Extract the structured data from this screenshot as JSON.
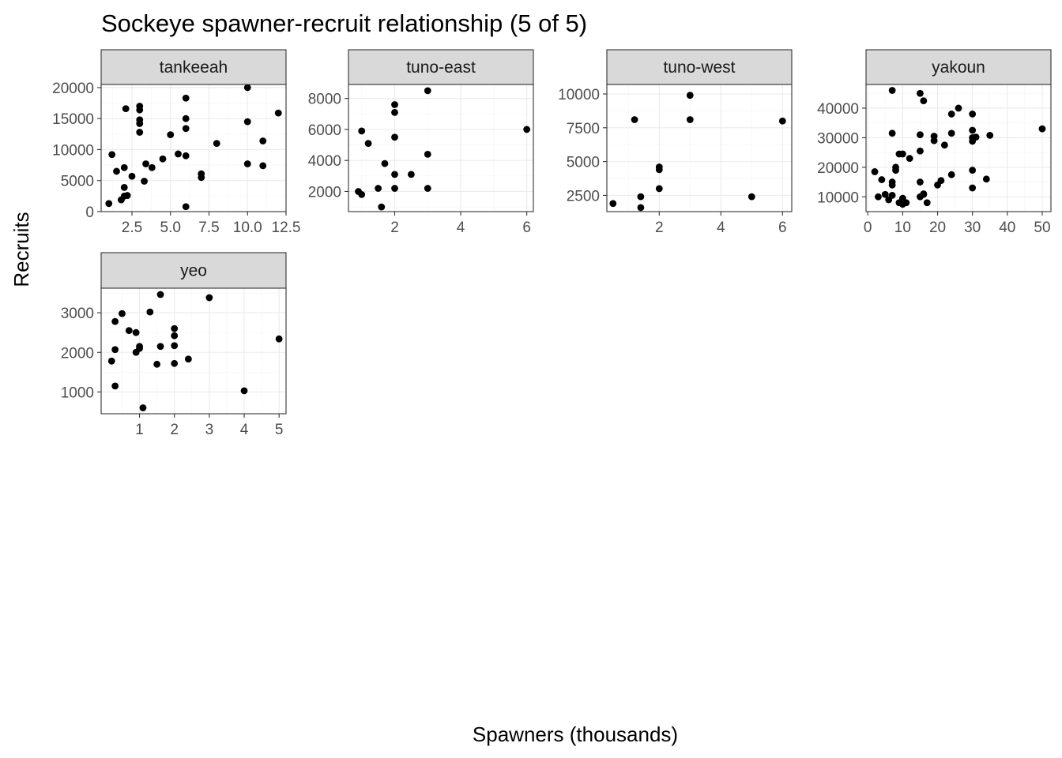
{
  "chart_data": {
    "type": "scatter",
    "title": "Sockeye spawner-recruit relationship (5 of 5)",
    "xlabel": "Spawners (thousands)",
    "ylabel": "Recruits",
    "grid": true,
    "facets": [
      {
        "name": "tankeeah",
        "xlim": [
          0.5,
          12.5
        ],
        "ylim": [
          0,
          20500
        ],
        "xticks": [
          2.5,
          5.0,
          7.5,
          10.0,
          12.5
        ],
        "xtick_labels": [
          "2.5",
          "5.0",
          "7.5",
          "10.0",
          "12.5"
        ],
        "yticks": [
          0,
          5000,
          10000,
          15000,
          20000
        ],
        "ytick_labels": [
          "0",
          "5000",
          "10000",
          "15000",
          "20000"
        ],
        "points": [
          [
            1.0,
            1300
          ],
          [
            1.2,
            9200
          ],
          [
            1.5,
            6500
          ],
          [
            1.8,
            1900
          ],
          [
            2.0,
            2500
          ],
          [
            2.0,
            7100
          ],
          [
            2.0,
            3900
          ],
          [
            2.1,
            16600
          ],
          [
            2.2,
            2600
          ],
          [
            2.5,
            5700
          ],
          [
            3.0,
            17000
          ],
          [
            3.0,
            16400
          ],
          [
            3.0,
            14800
          ],
          [
            3.0,
            14200
          ],
          [
            3.0,
            12800
          ],
          [
            3.3,
            4900
          ],
          [
            3.4,
            7700
          ],
          [
            3.8,
            7100
          ],
          [
            4.5,
            8500
          ],
          [
            5.0,
            12400
          ],
          [
            5.5,
            9300
          ],
          [
            6.0,
            18300
          ],
          [
            6.0,
            15000
          ],
          [
            6.0,
            13400
          ],
          [
            6.0,
            9000
          ],
          [
            6.0,
            800
          ],
          [
            7.0,
            5500
          ],
          [
            7.0,
            6100
          ],
          [
            8.0,
            11000
          ],
          [
            10.0,
            20000
          ],
          [
            10.0,
            14500
          ],
          [
            10.0,
            7700
          ],
          [
            11.0,
            11400
          ],
          [
            11.0,
            7400
          ],
          [
            12.0,
            15900
          ]
        ]
      },
      {
        "name": "tuno-east",
        "xlim": [
          0.6,
          6.2
        ],
        "ylim": [
          700,
          8900
        ],
        "xticks": [
          2,
          4,
          6
        ],
        "xtick_labels": [
          "2",
          "4",
          "6"
        ],
        "yticks": [
          2000,
          4000,
          6000,
          8000
        ],
        "ytick_labels": [
          "2000",
          "4000",
          "6000",
          "8000"
        ],
        "points": [
          [
            0.9,
            2000
          ],
          [
            1.0,
            5900
          ],
          [
            1.0,
            1800
          ],
          [
            1.2,
            5100
          ],
          [
            1.5,
            2200
          ],
          [
            1.6,
            1000
          ],
          [
            1.7,
            3800
          ],
          [
            2.0,
            7600
          ],
          [
            2.0,
            7100
          ],
          [
            2.0,
            5500
          ],
          [
            2.0,
            3100
          ],
          [
            2.0,
            2200
          ],
          [
            2.5,
            3100
          ],
          [
            3.0,
            8500
          ],
          [
            3.0,
            4400
          ],
          [
            3.0,
            2200
          ],
          [
            6.0,
            6000
          ]
        ]
      },
      {
        "name": "tuno-west",
        "xlim": [
          0.3,
          6.3
        ],
        "ylim": [
          1300,
          10700
        ],
        "xticks": [
          2,
          4,
          6
        ],
        "xtick_labels": [
          "2",
          "4",
          "6"
        ],
        "yticks": [
          2500,
          5000,
          7500,
          10000
        ],
        "ytick_labels": [
          "2500",
          "5000",
          "7500",
          "10000"
        ],
        "points": [
          [
            0.5,
            1900
          ],
          [
            1.2,
            8100
          ],
          [
            1.4,
            2400
          ],
          [
            1.4,
            1600
          ],
          [
            2.0,
            4600
          ],
          [
            2.0,
            4400
          ],
          [
            2.0,
            3000
          ],
          [
            3.0,
            9900
          ],
          [
            3.0,
            8100
          ],
          [
            5.0,
            2400
          ],
          [
            6.0,
            8000
          ]
        ]
      },
      {
        "name": "yakoun",
        "xlim": [
          -0.5,
          52.5
        ],
        "ylim": [
          5000,
          48000
        ],
        "xticks": [
          0,
          10,
          20,
          30,
          40,
          50
        ],
        "xtick_labels": [
          "0",
          "10",
          "20",
          "30",
          "40",
          "50"
        ],
        "yticks": [
          10000,
          20000,
          30000,
          40000
        ],
        "ytick_labels": [
          "10000",
          "20000",
          "30000",
          "40000"
        ],
        "points": [
          [
            2,
            18500
          ],
          [
            3,
            10000
          ],
          [
            4,
            15800
          ],
          [
            5,
            10800
          ],
          [
            6,
            9000
          ],
          [
            7,
            46000
          ],
          [
            7,
            31500
          ],
          [
            7,
            15000
          ],
          [
            7,
            14000
          ],
          [
            7,
            10500
          ],
          [
            8,
            19000
          ],
          [
            8,
            20000
          ],
          [
            9,
            8000
          ],
          [
            9,
            24500
          ],
          [
            10,
            24500
          ],
          [
            10,
            7500
          ],
          [
            10,
            9500
          ],
          [
            11,
            8000
          ],
          [
            12,
            23000
          ],
          [
            15,
            45000
          ],
          [
            15,
            31000
          ],
          [
            15,
            25500
          ],
          [
            15,
            15000
          ],
          [
            15,
            10000
          ],
          [
            16,
            42500
          ],
          [
            16,
            11000
          ],
          [
            16,
            10800
          ],
          [
            17,
            8000
          ],
          [
            19,
            29000
          ],
          [
            19,
            30500
          ],
          [
            20,
            14000
          ],
          [
            21,
            15500
          ],
          [
            22,
            27500
          ],
          [
            24,
            38000
          ],
          [
            24,
            31500
          ],
          [
            24,
            17500
          ],
          [
            26,
            40000
          ],
          [
            30,
            38000
          ],
          [
            30,
            32500
          ],
          [
            30,
            30000
          ],
          [
            30,
            28800
          ],
          [
            30,
            19000
          ],
          [
            30,
            13000
          ],
          [
            31,
            30200
          ],
          [
            34,
            16000
          ],
          [
            35,
            30800
          ],
          [
            50,
            33000
          ]
        ]
      },
      {
        "name": "yeo",
        "xlim": [
          -0.1,
          5.2
        ],
        "ylim": [
          450,
          3620
        ],
        "xticks": [
          1,
          2,
          3,
          4,
          5
        ],
        "xtick_labels": [
          "1",
          "2",
          "3",
          "4",
          "5"
        ],
        "yticks": [
          1000,
          2000,
          3000
        ],
        "ytick_labels": [
          "1000",
          "2000",
          "3000"
        ],
        "points": [
          [
            0.2,
            1780
          ],
          [
            0.3,
            1150
          ],
          [
            0.3,
            2780
          ],
          [
            0.3,
            2070
          ],
          [
            0.5,
            2980
          ],
          [
            0.7,
            2550
          ],
          [
            0.9,
            2500
          ],
          [
            0.9,
            2000
          ],
          [
            1.0,
            2150
          ],
          [
            1.0,
            2100
          ],
          [
            1.1,
            600
          ],
          [
            1.3,
            3020
          ],
          [
            1.5,
            1700
          ],
          [
            1.6,
            3460
          ],
          [
            1.6,
            2150
          ],
          [
            2.0,
            2600
          ],
          [
            2.0,
            2420
          ],
          [
            2.0,
            2170
          ],
          [
            2.0,
            1720
          ],
          [
            2.4,
            1830
          ],
          [
            3.0,
            3380
          ],
          [
            4.0,
            1030
          ],
          [
            5.0,
            2340
          ]
        ]
      }
    ]
  }
}
